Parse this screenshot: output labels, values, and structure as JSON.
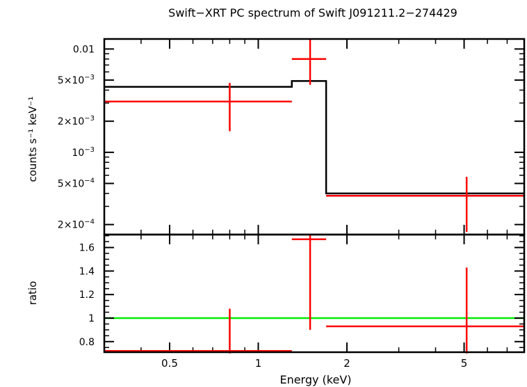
{
  "chart_data": [
    {
      "type": "scatter",
      "panel": "spectrum",
      "title": "Swift−XRT PC spectrum of Swift J091211.2−274429",
      "xlabel": "",
      "ylabel": "counts s⁻¹ keV⁻¹",
      "xscale": "log",
      "yscale": "log",
      "xlim": [
        0.3,
        8.0
      ],
      "ylim": [
        0.00016,
        0.0125
      ],
      "y_ticks": [
        {
          "value": 0.01,
          "mant": "0.01",
          "exp": ""
        },
        {
          "value": 0.005,
          "mant": "5×10",
          "exp": "−3"
        },
        {
          "value": 0.002,
          "mant": "2×10",
          "exp": "−3"
        },
        {
          "value": 0.001,
          "mant": "10",
          "exp": "−3"
        },
        {
          "value": 0.0005,
          "mant": "5×10",
          "exp": "−4"
        },
        {
          "value": 0.0002,
          "mant": "2×10",
          "exp": "−4"
        }
      ],
      "series": [
        {
          "kind": "data",
          "color": "#ff0000",
          "points": [
            {
              "x": 0.8,
              "xlo": 0.3,
              "xhi": 1.3,
              "y": 0.0031,
              "ylo": 0.0016,
              "yhi": 0.0047
            },
            {
              "x": 1.5,
              "xlo": 1.3,
              "xhi": 1.7,
              "y": 0.008,
              "ylo": 0.0045,
              "yhi": 0.0125
            },
            {
              "x": 5.1,
              "xlo": 1.7,
              "xhi": 8.0,
              "y": 0.00038,
              "ylo": 0.00017,
              "yhi": 0.00058
            }
          ]
        },
        {
          "kind": "model",
          "color": "#000000",
          "steps": [
            {
              "xlo": 0.3,
              "xhi": 1.3,
              "y": 0.0043
            },
            {
              "xlo": 1.3,
              "xhi": 1.7,
              "y": 0.0049
            },
            {
              "xlo": 1.7,
              "xhi": 8.0,
              "y": 0.0004
            }
          ]
        }
      ]
    },
    {
      "type": "scatter",
      "panel": "ratio",
      "xlabel": "Energy (keV)",
      "ylabel": "ratio",
      "xscale": "log",
      "yscale": "linear",
      "xlim": [
        0.3,
        8.0
      ],
      "ylim": [
        0.71,
        1.71
      ],
      "x_ticks": [
        {
          "value": 0.5,
          "label": "0.5"
        },
        {
          "value": 1,
          "label": "1"
        },
        {
          "value": 2,
          "label": "2"
        },
        {
          "value": 5,
          "label": "5"
        }
      ],
      "y_ticks": [
        {
          "value": 0.8,
          "label": "0.8"
        },
        {
          "value": 1.0,
          "label": "1"
        },
        {
          "value": 1.2,
          "label": "1.2"
        },
        {
          "value": 1.4,
          "label": "1.4"
        },
        {
          "value": 1.6,
          "label": "1.6"
        }
      ],
      "reference_line": {
        "y": 1.0,
        "color": "#00ee00"
      },
      "series": [
        {
          "kind": "data",
          "color": "#ff0000",
          "points": [
            {
              "x": 0.8,
              "xlo": 0.3,
              "xhi": 1.3,
              "y": 0.72,
              "ylo": 0.7,
              "yhi": 1.08
            },
            {
              "x": 1.5,
              "xlo": 1.3,
              "xhi": 1.7,
              "y": 1.67,
              "ylo": 0.9,
              "yhi": 1.71
            },
            {
              "x": 5.1,
              "xlo": 1.7,
              "xhi": 8.0,
              "y": 0.93,
              "ylo": 0.7,
              "yhi": 1.43
            }
          ]
        }
      ]
    }
  ]
}
